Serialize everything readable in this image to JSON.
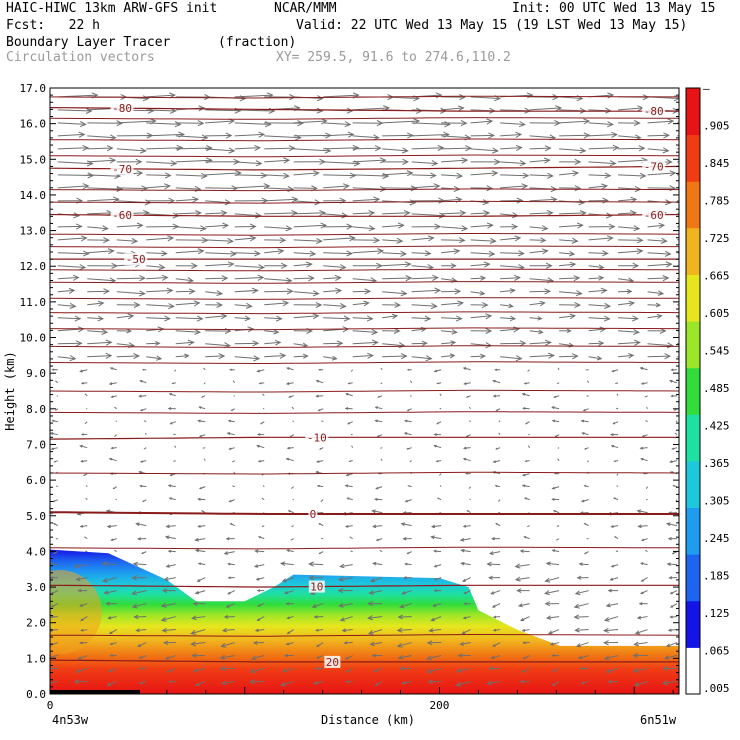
{
  "header": {
    "title_left": "HAIC-HIWC 13km ARW-GFS init",
    "org": "NCAR/MMM",
    "init": "Init: 00 UTC Wed 13 May 15",
    "fcst": "Fcst:   22 h",
    "valid": "Valid: 22 UTC Wed 13 May 15 (19 LST Wed 13 May 15)",
    "field": "Boundary Layer Tracer",
    "field_unit": "(fraction)",
    "overlay": "Circulation vectors",
    "xy": "XY= 259.5, 91.6 to 274.6,110.2"
  },
  "colors": {
    "isotherm": "#8b1a1a",
    "vector": "#6f6f6f",
    "scale": [
      "#ffffff",
      "#1414e6",
      "#1e64f0",
      "#1e9cf0",
      "#1ec8dc",
      "#1ee0a0",
      "#32dc3c",
      "#9be628",
      "#e6e61e",
      "#f0b41e",
      "#f07814",
      "#f03c14",
      "#e61414"
    ]
  },
  "chart_data": {
    "type": "heatmap",
    "title": "Boundary Layer Tracer",
    "unit": "(fraction)",
    "xlabel": "Distance (km)",
    "ylabel": "Height (km)",
    "xlim": [
      0,
      323
    ],
    "ylim": [
      0,
      17
    ],
    "x_ticks": [
      {
        "v": 0,
        "label": "0"
      },
      {
        "v": 200,
        "label": "200"
      }
    ],
    "x_end_labels": {
      "left": "4n53w",
      "right": "6n51w"
    },
    "y_ticks": [
      "0.0",
      "1.0",
      "2.0",
      "3.0",
      "4.0",
      "5.0",
      "6.0",
      "7.0",
      "8.0",
      "9.0",
      "10.0",
      "11.0",
      "12.0",
      "13.0",
      "14.0",
      "15.0",
      "16.0",
      "17.0"
    ],
    "colorbar_labels": [
      ".005",
      ".065",
      ".125",
      ".185",
      ".245",
      ".305",
      ".365",
      ".425",
      ".485",
      ".545",
      ".605",
      ".665",
      ".725",
      ".785",
      ".845",
      ".905",
      "–"
    ],
    "tracer_top_km": [
      [
        0,
        4.05
      ],
      [
        30,
        3.95
      ],
      [
        60,
        3.2
      ],
      [
        75,
        2.6
      ],
      [
        100,
        2.6
      ],
      [
        115,
        3.0
      ],
      [
        125,
        3.35
      ],
      [
        200,
        3.25
      ],
      [
        215,
        3.0
      ],
      [
        220,
        2.35
      ],
      [
        240,
        1.8
      ],
      [
        262,
        1.35
      ],
      [
        323,
        1.35
      ]
    ],
    "isotherms": [
      {
        "label": "-80",
        "h": [
          16.45,
          16.4,
          16.35,
          16.35
        ]
      },
      {
        "label": "-70",
        "h": [
          14.75,
          14.7,
          14.75,
          14.8
        ]
      },
      {
        "label": "-60",
        "h": [
          13.45,
          13.4,
          13.4,
          13.45
        ]
      },
      {
        "label": "-50",
        "h": [
          12.2,
          12.2,
          12.2,
          12.2
        ]
      },
      {
        "label": "-10",
        "h": [
          7.15,
          7.2,
          7.2,
          7.2
        ]
      },
      {
        "label": "0",
        "h": [
          5.1,
          5.05,
          5.05,
          5.05
        ]
      },
      {
        "label": "10",
        "h": [
          3.05,
          3.0,
          3.05,
          3.05
        ]
      },
      {
        "label": "20",
        "h": [
          0.95,
          0.9,
          0.9,
          0.9
        ]
      }
    ],
    "isotherm_labels_x": [
      {
        "label": "-80",
        "x": [
          37,
          310
        ]
      },
      {
        "label": "-70",
        "x": [
          37,
          310
        ]
      },
      {
        "label": "-60",
        "x": [
          37,
          310
        ]
      },
      {
        "label": "-50",
        "x": [
          44
        ]
      },
      {
        "label": "-10",
        "x": [
          137
        ]
      },
      {
        "label": "0",
        "x": [
          135
        ]
      },
      {
        "label": "10",
        "x": [
          137
        ]
      },
      {
        "label": "20",
        "x": [
          145
        ]
      }
    ],
    "unlabeled_contours": [
      16.75,
      16.15,
      15.55,
      15.1,
      14.15,
      13.8,
      12.9,
      12.55,
      11.9,
      11.55,
      11.1,
      10.7,
      10.25,
      9.75,
      9.3,
      8.5,
      7.9,
      6.2,
      4.1,
      1.65
    ],
    "grid": false,
    "legend": "right"
  }
}
